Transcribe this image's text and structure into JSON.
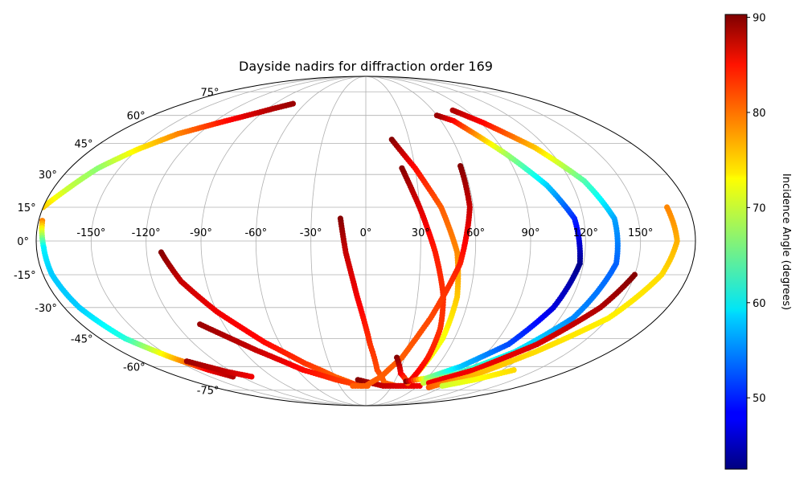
{
  "chart_data": {
    "type": "scatter",
    "projection": "mollweide",
    "title": "Dayside nadirs for diffraction order 169",
    "lon_ticks": [
      "-150°",
      "-120°",
      "-90°",
      "-60°",
      "-30°",
      "0°",
      "30°",
      "60°",
      "90°",
      "120°",
      "150°"
    ],
    "lon_tick_values": [
      -150,
      -120,
      -90,
      -60,
      -30,
      0,
      30,
      60,
      90,
      120,
      150
    ],
    "lat_ticks": [
      "75°",
      "60°",
      "45°",
      "30°",
      "15°",
      "0°",
      "-15°",
      "-30°",
      "-45°",
      "-60°",
      "-75°"
    ],
    "lat_tick_values": [
      75,
      60,
      45,
      30,
      15,
      0,
      -15,
      -30,
      -45,
      -60,
      -75
    ],
    "grid": true,
    "colorbar": {
      "label": "Incidence Angle (degrees)",
      "min": 42.5,
      "max": 90.3,
      "ticks": [
        "50",
        "60",
        "70",
        "80",
        "90"
      ],
      "tick_values": [
        50,
        60,
        70,
        80,
        90
      ],
      "colormap": "jet",
      "position": "right"
    },
    "series": [
      {
        "points": [
          [
            -180,
            15,
            75
          ],
          [
            -172,
            23,
            70
          ],
          [
            -163,
            33,
            67
          ],
          [
            -150,
            42,
            73
          ],
          [
            -135,
            50,
            78
          ],
          [
            -115,
            56,
            83
          ],
          [
            -100,
            60,
            86
          ],
          [
            -85,
            64,
            88
          ],
          [
            -72,
            67,
            89
          ]
        ]
      },
      {
        "points": [
          [
            -178,
            9,
            78
          ],
          [
            -176,
            -3,
            60
          ],
          [
            -175,
            -15,
            58
          ],
          [
            -171,
            -30,
            58
          ],
          [
            -163,
            -45,
            62
          ],
          [
            -150,
            -55,
            75
          ],
          [
            -138,
            -62,
            85
          ],
          [
            -128,
            -66,
            88
          ]
        ]
      },
      {
        "points": [
          [
            -112,
            -5,
            90
          ],
          [
            -104,
            -18,
            87
          ],
          [
            -90,
            -32,
            85
          ],
          [
            -70,
            -47,
            84
          ],
          [
            -50,
            -58,
            82
          ],
          [
            -30,
            -66,
            80
          ],
          [
            -12,
            -71,
            80
          ],
          [
            2,
            -72,
            80
          ]
        ]
      },
      {
        "points": [
          [
            -143,
            -57,
            89
          ],
          [
            -125,
            -63,
            87
          ],
          [
            -110,
            -66,
            85
          ]
        ]
      },
      {
        "points": [
          [
            -105,
            -38,
            89
          ],
          [
            -80,
            -51,
            87
          ],
          [
            -55,
            -62,
            84
          ],
          [
            -30,
            -68,
            82
          ],
          [
            -5,
            -72,
            81
          ]
        ]
      },
      {
        "points": [
          [
            -14,
            10,
            90
          ],
          [
            -11,
            -5,
            87
          ],
          [
            -5,
            -25,
            85
          ],
          [
            3,
            -48,
            82
          ],
          [
            10,
            -62,
            81
          ],
          [
            20,
            -70,
            80
          ],
          [
            35,
            -72,
            80
          ],
          [
            55,
            -72,
            80
          ]
        ]
      },
      {
        "points": [
          [
            -8,
            -68,
            90
          ],
          [
            5,
            -70,
            88
          ],
          [
            20,
            -72,
            87
          ],
          [
            40,
            -72,
            86
          ],
          [
            62,
            -72,
            85
          ]
        ]
      },
      {
        "points": [
          [
            18,
            47,
            90
          ],
          [
            30,
            33,
            84
          ],
          [
            42,
            15,
            80
          ],
          [
            50,
            -5,
            78
          ],
          [
            53,
            -25,
            75
          ],
          [
            52,
            -45,
            72
          ],
          [
            48,
            -60,
            72
          ],
          [
            45,
            -70,
            72
          ]
        ]
      },
      {
        "points": [
          [
            22,
            33,
            90
          ],
          [
            30,
            15,
            86
          ],
          [
            38,
            -5,
            83
          ],
          [
            45,
            -25,
            82
          ],
          [
            48,
            -40,
            82
          ],
          [
            48,
            -55,
            83
          ],
          [
            46,
            -68,
            85
          ]
        ]
      },
      {
        "points": [
          [
            58,
            34,
            90
          ],
          [
            58,
            15,
            87
          ],
          [
            52,
            -10,
            83
          ],
          [
            40,
            -35,
            81
          ],
          [
            28,
            -55,
            80
          ],
          [
            15,
            -66,
            80
          ],
          [
            0,
            -72,
            80
          ],
          [
            -15,
            -72,
            80
          ]
        ]
      },
      {
        "points": [
          [
            24,
            -55,
            90
          ],
          [
            32,
            -64,
            85
          ],
          [
            45,
            -70,
            80
          ]
        ]
      },
      {
        "points": [
          [
            42,
            -69,
            90
          ],
          [
            60,
            -67,
            68
          ],
          [
            80,
            -60,
            58
          ],
          [
            100,
            -48,
            52
          ],
          [
            112,
            -30,
            47
          ],
          [
            118,
            -10,
            43
          ],
          [
            115,
            10,
            50
          ],
          [
            105,
            25,
            58
          ],
          [
            90,
            40,
            68
          ],
          [
            70,
            57,
            84
          ],
          [
            60,
            60,
            89
          ]
        ]
      },
      {
        "points": [
          [
            62,
            -70,
            70
          ],
          [
            85,
            -64,
            64
          ],
          [
            110,
            -52,
            60
          ],
          [
            128,
            -35,
            55
          ],
          [
            138,
            -10,
            53
          ],
          [
            137,
            10,
            56
          ],
          [
            128,
            27,
            64
          ],
          [
            112,
            43,
            75
          ],
          [
            92,
            56,
            84
          ],
          [
            78,
            63,
            88
          ]
        ]
      },
      {
        "points": [
          [
            68,
            -70,
            85
          ],
          [
            95,
            -62,
            85
          ],
          [
            120,
            -48,
            86
          ],
          [
            140,
            -30,
            88
          ],
          [
            150,
            -15,
            90
          ]
        ]
      },
      {
        "points": [
          [
            75,
            -73,
            80
          ],
          [
            100,
            -66,
            76
          ],
          [
            125,
            -52,
            74
          ],
          [
            150,
            -35,
            73
          ],
          [
            165,
            -15,
            74
          ],
          [
            170,
            0,
            76
          ],
          [
            168,
            15,
            78
          ]
        ]
      },
      {
        "points": [
          [
            88,
            -72,
            70
          ],
          [
            110,
            -68,
            72
          ],
          [
            130,
            -62,
            74
          ]
        ]
      }
    ]
  }
}
